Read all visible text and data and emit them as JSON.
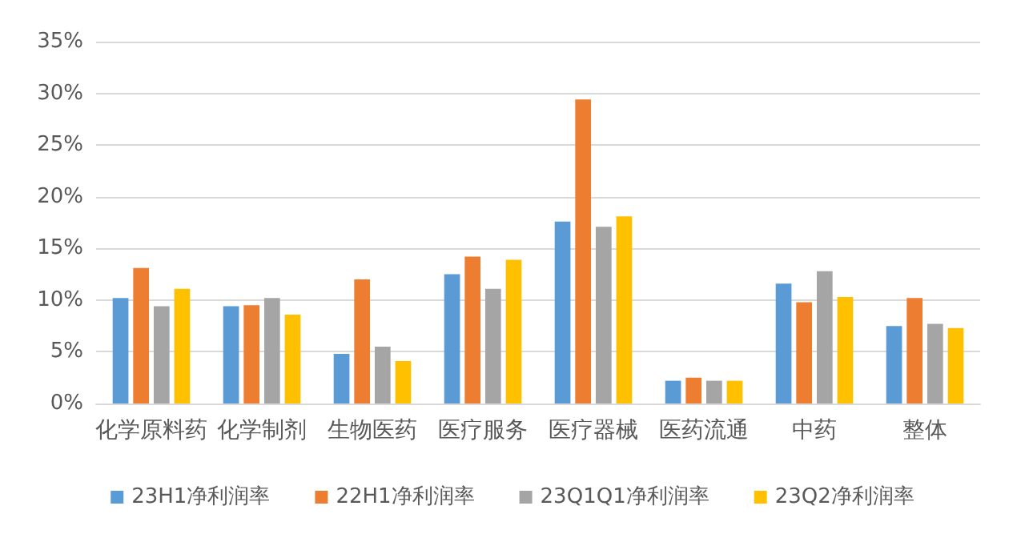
{
  "chart_data": {
    "type": "bar",
    "categories": [
      "化学原料药",
      "化学制剂",
      "生物医药",
      "医疗服务",
      "医疗器械",
      "医药流通",
      "中药",
      "整体"
    ],
    "series": [
      {
        "name": "23H1净利润率",
        "color": "#5b9bd5",
        "values": [
          10.2,
          9.4,
          4.8,
          12.5,
          17.6,
          2.2,
          11.6,
          7.5
        ]
      },
      {
        "name": "22H1净利润率",
        "color": "#ed7d31",
        "values": [
          13.1,
          9.5,
          12.0,
          14.2,
          29.4,
          2.5,
          9.8,
          10.2
        ]
      },
      {
        "name": "23Q1Q1净利润率",
        "color": "#a5a5a5",
        "values": [
          9.4,
          10.2,
          5.5,
          11.1,
          17.1,
          2.2,
          12.8,
          7.7
        ]
      },
      {
        "name": "23Q2净利润率",
        "color": "#ffc000",
        "values": [
          11.1,
          8.6,
          4.1,
          13.9,
          18.1,
          2.2,
          10.3,
          7.3
        ]
      }
    ],
    "ylim": [
      0,
      35
    ],
    "yticks": [
      {
        "value": 0,
        "label": "0%"
      },
      {
        "value": 5,
        "label": "5%"
      },
      {
        "value": 10,
        "label": "10%"
      },
      {
        "value": 15,
        "label": "15%"
      },
      {
        "value": 20,
        "label": "20%"
      },
      {
        "value": 25,
        "label": "25%"
      },
      {
        "value": 30,
        "label": "30%"
      },
      {
        "value": 35,
        "label": "35%"
      }
    ],
    "grid": "y",
    "legend": "bottom"
  }
}
